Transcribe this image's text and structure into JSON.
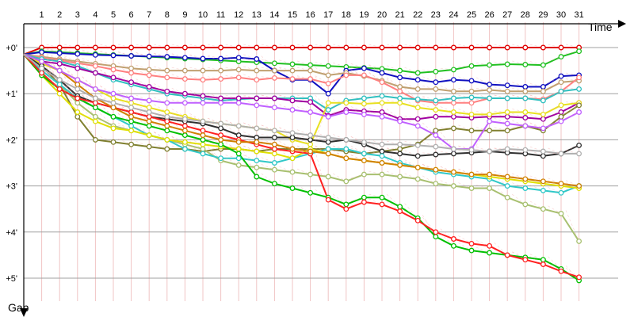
{
  "chart_data": {
    "type": "line",
    "title": "",
    "xlabel": "Time",
    "ylabel": "Gap",
    "x": [
      1,
      2,
      3,
      4,
      5,
      6,
      7,
      8,
      9,
      10,
      11,
      12,
      13,
      14,
      15,
      16,
      17,
      18,
      19,
      20,
      21,
      22,
      23,
      24,
      25,
      26,
      27,
      28,
      29,
      30,
      31
    ],
    "x_tick_labels": [
      "1",
      "2",
      "3",
      "4",
      "5",
      "6",
      "7",
      "8",
      "9",
      "10",
      "11",
      "12",
      "13",
      "14",
      "15",
      "16",
      "17",
      "18",
      "19",
      "20",
      "21",
      "22",
      "23",
      "24",
      "25",
      "26",
      "27",
      "28",
      "29",
      "30",
      "31"
    ],
    "y_tick_labels": [
      "+0'",
      "+1'",
      "+2'",
      "+3'",
      "+4'",
      "+5'"
    ],
    "y_tick_values": [
      0,
      1,
      2,
      3,
      4,
      5
    ],
    "ylim": [
      0,
      5.5
    ],
    "y_direction": "down",
    "grid": true,
    "start_x": 0,
    "start_gap": 0.15,
    "series": [
      {
        "color": "#e00000",
        "values": [
          0,
          0,
          0,
          0,
          0,
          0,
          0,
          0,
          0,
          0,
          0,
          0,
          0,
          0,
          0,
          0,
          0,
          0,
          0,
          0,
          0,
          0,
          0,
          0,
          0,
          0,
          0,
          0,
          0,
          0,
          0
        ]
      },
      {
        "color": "#20c020",
        "values": [
          0.08,
          0.1,
          0.12,
          0.14,
          0.16,
          0.18,
          0.2,
          0.22,
          0.24,
          0.26,
          0.28,
          0.3,
          0.32,
          0.34,
          0.36,
          0.38,
          0.4,
          0.42,
          0.44,
          0.46,
          0.5,
          0.55,
          0.52,
          0.48,
          0.4,
          0.38,
          0.36,
          0.37,
          0.38,
          0.2,
          0.08
        ]
      },
      {
        "color": "#1010c0",
        "values": [
          0.1,
          0.12,
          0.14,
          0.16,
          0.17,
          0.18,
          0.19,
          0.2,
          0.22,
          0.24,
          0.24,
          0.22,
          0.25,
          0.5,
          0.7,
          0.7,
          1.0,
          0.5,
          0.45,
          0.55,
          0.65,
          0.7,
          0.75,
          0.7,
          0.72,
          0.8,
          0.82,
          0.85,
          0.85,
          0.62,
          0.6
        ]
      },
      {
        "color": "#c0a070",
        "values": [
          0.2,
          0.25,
          0.3,
          0.35,
          0.4,
          0.45,
          0.48,
          0.5,
          0.5,
          0.5,
          0.5,
          0.48,
          0.5,
          0.5,
          0.5,
          0.5,
          0.6,
          0.55,
          0.62,
          0.72,
          0.85,
          0.9,
          0.9,
          0.95,
          0.95,
          0.92,
          0.95,
          0.95,
          0.95,
          0.75,
          0.72
        ]
      },
      {
        "color": "#ff8080",
        "values": [
          0.22,
          0.28,
          0.34,
          0.4,
          0.48,
          0.55,
          0.6,
          0.65,
          0.68,
          0.7,
          0.68,
          0.65,
          0.7,
          0.66,
          0.68,
          0.68,
          0.78,
          0.6,
          0.6,
          0.75,
          0.95,
          1.15,
          1.2,
          1.2,
          1.2,
          1.1,
          1.1,
          1.1,
          1.12,
          0.95,
          0.65
        ]
      },
      {
        "color": "#30c0c0",
        "values": [
          0.25,
          0.3,
          0.4,
          0.55,
          0.7,
          0.8,
          0.9,
          1.0,
          1.05,
          1.1,
          1.15,
          1.12,
          1.1,
          1.1,
          1.1,
          1.1,
          1.35,
          1.15,
          1.1,
          1.05,
          1.1,
          1.12,
          1.15,
          1.1,
          1.08,
          1.1,
          1.1,
          1.1,
          1.15,
          0.95,
          0.9
        ]
      },
      {
        "color": "#a000a0",
        "values": [
          0.3,
          0.35,
          0.45,
          0.55,
          0.65,
          0.75,
          0.85,
          0.95,
          1.0,
          1.05,
          1.1,
          1.1,
          1.1,
          1.1,
          1.15,
          1.18,
          1.48,
          1.35,
          1.38,
          1.4,
          1.55,
          1.55,
          1.5,
          1.5,
          1.52,
          1.5,
          1.5,
          1.52,
          1.55,
          1.4,
          1.2
        ]
      },
      {
        "color": "#e8e020",
        "values": [
          0.35,
          0.5,
          0.7,
          0.9,
          1.1,
          1.2,
          1.3,
          1.4,
          1.5,
          1.6,
          1.65,
          1.7,
          1.75,
          1.8,
          2.0,
          2.1,
          1.2,
          1.2,
          1.22,
          1.2,
          1.2,
          1.3,
          1.35,
          1.4,
          1.45,
          1.45,
          1.4,
          1.4,
          1.45,
          1.25,
          1.2
        ]
      },
      {
        "color": "#808030",
        "values": [
          0.4,
          0.8,
          1.5,
          2.0,
          2.05,
          2.1,
          2.15,
          2.2,
          2.2,
          2.25,
          2.2,
          2.2,
          2.25,
          2.2,
          2.2,
          2.2,
          2.2,
          2.25,
          2.3,
          2.25,
          2.2,
          2.1,
          1.8,
          1.75,
          1.8,
          1.8,
          1.8,
          1.7,
          1.8,
          1.5,
          1.25
        ]
      },
      {
        "color": "#303030",
        "values": [
          0.4,
          0.7,
          1.05,
          1.2,
          1.3,
          1.4,
          1.5,
          1.55,
          1.6,
          1.65,
          1.75,
          1.9,
          1.95,
          1.95,
          1.95,
          2.0,
          2.05,
          2.0,
          2.1,
          2.25,
          2.3,
          2.35,
          2.32,
          2.3,
          2.28,
          2.25,
          2.28,
          2.3,
          2.35,
          2.3,
          2.12
        ]
      },
      {
        "color": "#a8c070",
        "values": [
          0.5,
          0.8,
          1.2,
          1.5,
          1.7,
          1.8,
          1.9,
          2.0,
          2.1,
          2.2,
          2.45,
          2.55,
          2.6,
          2.65,
          2.7,
          2.75,
          2.8,
          2.9,
          2.75,
          2.75,
          2.8,
          2.85,
          2.95,
          3.0,
          3.05,
          3.05,
          3.25,
          3.4,
          3.5,
          3.6,
          4.2
        ]
      },
      {
        "color": "#30c8c8",
        "values": [
          0.5,
          0.8,
          1.1,
          1.3,
          1.5,
          1.7,
          1.9,
          2.0,
          2.2,
          2.3,
          2.4,
          2.4,
          2.45,
          2.5,
          2.4,
          2.3,
          2.2,
          2.2,
          2.3,
          2.35,
          2.5,
          2.6,
          2.7,
          2.75,
          2.8,
          2.85,
          3.0,
          3.05,
          3.1,
          3.15,
          3.0
        ]
      },
      {
        "color": "#e0e000",
        "values": [
          0.6,
          1.0,
          1.4,
          1.6,
          1.75,
          1.8,
          1.9,
          2.0,
          2.05,
          2.1,
          2.15,
          2.2,
          2.25,
          2.3,
          2.4,
          2.2,
          2.3,
          2.4,
          2.45,
          2.5,
          2.55,
          2.6,
          2.65,
          2.7,
          2.75,
          2.8,
          2.85,
          2.9,
          2.95,
          3.0,
          3.05
        ]
      },
      {
        "color": "#00c000",
        "values": [
          0.6,
          0.9,
          1.1,
          1.3,
          1.5,
          1.6,
          1.7,
          1.8,
          1.9,
          2.0,
          2.1,
          2.3,
          2.8,
          2.95,
          3.05,
          3.15,
          3.25,
          3.4,
          3.25,
          3.25,
          3.45,
          3.7,
          4.1,
          4.3,
          4.4,
          4.45,
          4.5,
          4.55,
          4.6,
          4.8,
          5.05
        ]
      },
      {
        "color": "#ff2020",
        "values": [
          0.55,
          0.9,
          1.1,
          1.2,
          1.3,
          1.4,
          1.5,
          1.6,
          1.7,
          1.8,
          1.9,
          2.0,
          2.1,
          2.2,
          2.25,
          2.3,
          3.3,
          3.5,
          3.35,
          3.4,
          3.55,
          3.75,
          4.0,
          4.15,
          4.25,
          4.3,
          4.5,
          4.6,
          4.7,
          4.85,
          4.98
        ]
      },
      {
        "color": "#d08000",
        "values": [
          0.3,
          0.5,
          0.8,
          1.1,
          1.3,
          1.5,
          1.6,
          1.7,
          1.8,
          1.9,
          2.0,
          2.05,
          2.05,
          2.1,
          2.2,
          2.25,
          2.3,
          2.4,
          2.45,
          2.5,
          2.55,
          2.6,
          2.65,
          2.7,
          2.75,
          2.75,
          2.8,
          2.85,
          2.9,
          2.95,
          3.0
        ]
      },
      {
        "color": "#c060ff",
        "values": [
          0.3,
          0.5,
          0.7,
          0.9,
          1.0,
          1.1,
          1.15,
          1.2,
          1.2,
          1.2,
          1.2,
          1.2,
          1.25,
          1.3,
          1.35,
          1.4,
          1.5,
          1.4,
          1.45,
          1.5,
          1.6,
          1.7,
          1.9,
          2.2,
          2.2,
          1.6,
          1.65,
          1.7,
          1.75,
          1.6,
          1.4
        ]
      },
      {
        "color": "#b0b0b0",
        "values": [
          0.45,
          0.7,
          0.9,
          1.1,
          1.2,
          1.3,
          1.4,
          1.5,
          1.55,
          1.6,
          1.65,
          1.7,
          1.75,
          1.8,
          1.85,
          1.9,
          1.95,
          2.0,
          2.05,
          2.1,
          2.1,
          2.12,
          2.15,
          2.2,
          2.22,
          2.25,
          2.2,
          2.22,
          2.25,
          2.3,
          2.3
        ]
      }
    ]
  }
}
